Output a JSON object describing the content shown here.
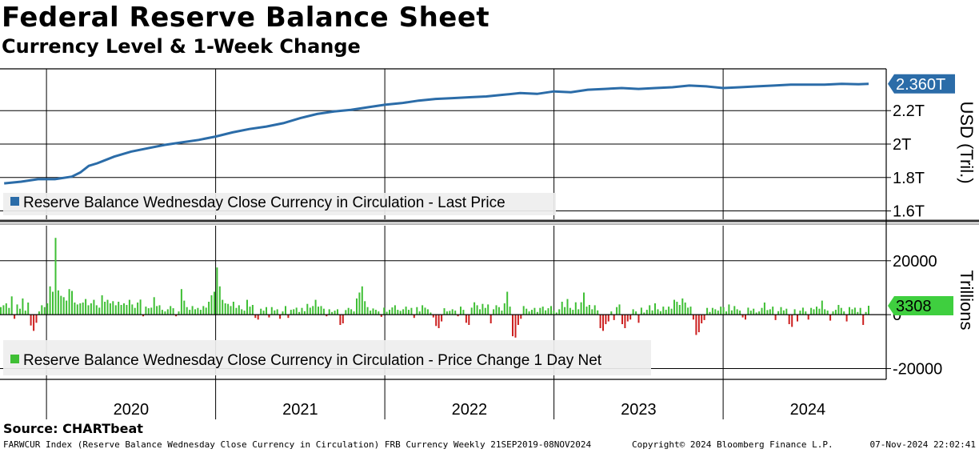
{
  "title": "Federal Reserve Balance Sheet",
  "subtitle": "Currency Level & 1-Week Change",
  "source": "Source: CHARTbeat",
  "footer": {
    "left": "FARWCUR Index (Reserve Balance Wednesday Close Currency in Circulation) FRB Currency  Weekly 21SEP2019-08NOV2024",
    "middle": "Copyright© 2024 Bloomberg Finance L.P.",
    "right": "07-Nov-2024 22:02:41"
  },
  "colors": {
    "line": "#2b6ca8",
    "positive": "#3fbf35",
    "negative": "#cc1f1f",
    "last_value_line_bg": "#2b6ca8",
    "last_value_bar_bg": "#3fcf3f"
  },
  "chart_data": [
    {
      "type": "line",
      "panel": "top",
      "legend": "Reserve Balance Wednesday Close Currency in Circulation - Last Price",
      "ylabel": "USD (Tril.)",
      "ylim": [
        1.55,
        2.45
      ],
      "yticks": [
        1.6,
        1.8,
        2.0,
        2.2
      ],
      "ytick_labels": [
        "1.6T",
        "1.8T",
        "2T",
        "2.2T"
      ],
      "last_value": 2.36,
      "last_value_label": "2.360T",
      "x": [
        2019.75,
        2019.85,
        2019.95,
        2020.05,
        2020.15,
        2020.2,
        2020.25,
        2020.3,
        2020.4,
        2020.5,
        2020.6,
        2020.7,
        2020.8,
        2020.9,
        2021.0,
        2021.1,
        2021.2,
        2021.3,
        2021.4,
        2021.5,
        2021.6,
        2021.7,
        2021.8,
        2021.9,
        2022.0,
        2022.1,
        2022.2,
        2022.3,
        2022.4,
        2022.5,
        2022.6,
        2022.7,
        2022.8,
        2022.9,
        2023.0,
        2023.1,
        2023.2,
        2023.3,
        2023.4,
        2023.5,
        2023.6,
        2023.7,
        2023.8,
        2023.9,
        2024.0,
        2024.1,
        2024.2,
        2024.3,
        2024.4,
        2024.5,
        2024.6,
        2024.7,
        2024.8,
        2024.86
      ],
      "values": [
        1.765,
        1.775,
        1.79,
        1.79,
        1.805,
        1.83,
        1.87,
        1.885,
        1.925,
        1.955,
        1.975,
        1.995,
        2.01,
        2.025,
        2.045,
        2.07,
        2.09,
        2.105,
        2.125,
        2.155,
        2.18,
        2.195,
        2.205,
        2.22,
        2.235,
        2.245,
        2.26,
        2.27,
        2.275,
        2.28,
        2.285,
        2.295,
        2.305,
        2.3,
        2.315,
        2.31,
        2.325,
        2.33,
        2.335,
        2.33,
        2.335,
        2.34,
        2.35,
        2.345,
        2.335,
        2.34,
        2.345,
        2.35,
        2.355,
        2.355,
        2.355,
        2.36,
        2.358,
        2.36
      ]
    },
    {
      "type": "bar",
      "panel": "bottom",
      "legend": "Reserve Balance Wednesday Close Currency in Circulation - Price Change 1 Day Net",
      "ylabel": "Trillions",
      "ylim": [
        -24000,
        33000
      ],
      "yticks": [
        -20000,
        0,
        20000
      ],
      "ytick_labels": [
        "-20000",
        "0",
        "20000"
      ],
      "last_value": 3308,
      "last_value_label": "3308",
      "x_start": 2019.73,
      "x_end": 2024.86,
      "values": [
        2800,
        3500,
        4200,
        2500,
        6800,
        -1500,
        3800,
        2200,
        6000,
        1500,
        4500,
        -4000,
        -6000,
        -3000,
        1200,
        3500,
        2800,
        4200,
        10500,
        8500,
        28500,
        9000,
        7000,
        6500,
        5200,
        9500,
        8800,
        4500,
        3800,
        4200,
        4500,
        5800,
        3500,
        4200,
        5500,
        3500,
        2600,
        7200,
        4800,
        5500,
        4200,
        5000,
        3500,
        4800,
        3600,
        4200,
        3600,
        5500,
        3800,
        2500,
        4500,
        5600,
        -600,
        3000,
        2400,
        2600,
        6500,
        3200,
        3500,
        1800,
        1200,
        2000,
        3200,
        2400,
        -600,
        1200,
        9500,
        5200,
        2800,
        1800,
        3200,
        2000,
        2500,
        1800,
        3200,
        2600,
        4800,
        7200,
        8500,
        17500,
        10500,
        5500,
        4200,
        4000,
        3200,
        4800,
        2500,
        3500,
        2000,
        1500,
        5500,
        3000,
        3600,
        -1200,
        -1800,
        2200,
        1500,
        2800,
        -1000,
        2800,
        1600,
        2000,
        -1500,
        1200,
        3200,
        -1200,
        1800,
        2000,
        2600,
        1000,
        2500,
        1300,
        4000,
        2600,
        3200,
        5500,
        3000,
        3200,
        2200,
        -600,
        2000,
        1000,
        1500,
        2000,
        -3800,
        -3200,
        1700,
        2500,
        2000,
        1200,
        6000,
        8200,
        10500,
        5000,
        2800,
        1500,
        2300,
        1800,
        1200,
        -800,
        2600,
        1100,
        1800,
        2700,
        3500,
        1800,
        1400,
        2000,
        3000,
        1800,
        2500,
        -1200,
        2800,
        1200,
        3500,
        2600,
        2000,
        800,
        -1000,
        -4200,
        -5000,
        -2500,
        2400,
        1200,
        1400,
        2000,
        1500,
        -600,
        3000,
        1800,
        -3000,
        -3800,
        2600,
        4600,
        3500,
        2000,
        4000,
        2500,
        3800,
        -3200,
        2000,
        3500,
        2800,
        1500,
        4200,
        8500,
        3000,
        -8000,
        -8500,
        -3800,
        -1500,
        3200,
        2200,
        1200,
        1800,
        2500,
        1000,
        2500,
        3000,
        1600,
        2400,
        3200,
        1500,
        800,
        2000,
        4800,
        2800,
        5800,
        2500,
        1800,
        4600,
        2000,
        4600,
        8200,
        3000,
        3600,
        2000,
        3500,
        1600,
        -5000,
        -6000,
        -3500,
        -2500,
        1200,
        -2000,
        2800,
        3800,
        -3500,
        -5000,
        -2500,
        -1800,
        2000,
        1200,
        -3000,
        2600,
        800,
        1800,
        3500,
        1600,
        4200,
        2000,
        1300,
        3000,
        1800,
        3000,
        2200,
        5500,
        4800,
        3600,
        6000,
        4500,
        2600,
        3000,
        -1800,
        -7500,
        -6500,
        -3200,
        -2000,
        2500,
        1000,
        2500,
        2000,
        1500,
        3000,
        2800,
        1200,
        3800,
        1600,
        3200,
        2000,
        1500,
        -1000,
        -1800,
        2600,
        1500,
        2200,
        800,
        1200,
        2500,
        4500,
        1700,
        2000,
        3000,
        -2000,
        1300,
        2800,
        1600,
        2200,
        -3500,
        -4500,
        2000,
        -2500,
        1500,
        2600,
        1200,
        -1800,
        2500,
        2000,
        3000,
        2200,
        5200,
        2000,
        1500,
        -2200,
        1200,
        1800,
        3600,
        2500,
        1200,
        -2500,
        2800,
        2000,
        2600,
        1000,
        2500,
        -3800,
        1000,
        3308
      ]
    }
  ],
  "x_axis": {
    "labels": [
      "2020",
      "2021",
      "2022",
      "2023",
      "2024"
    ]
  }
}
